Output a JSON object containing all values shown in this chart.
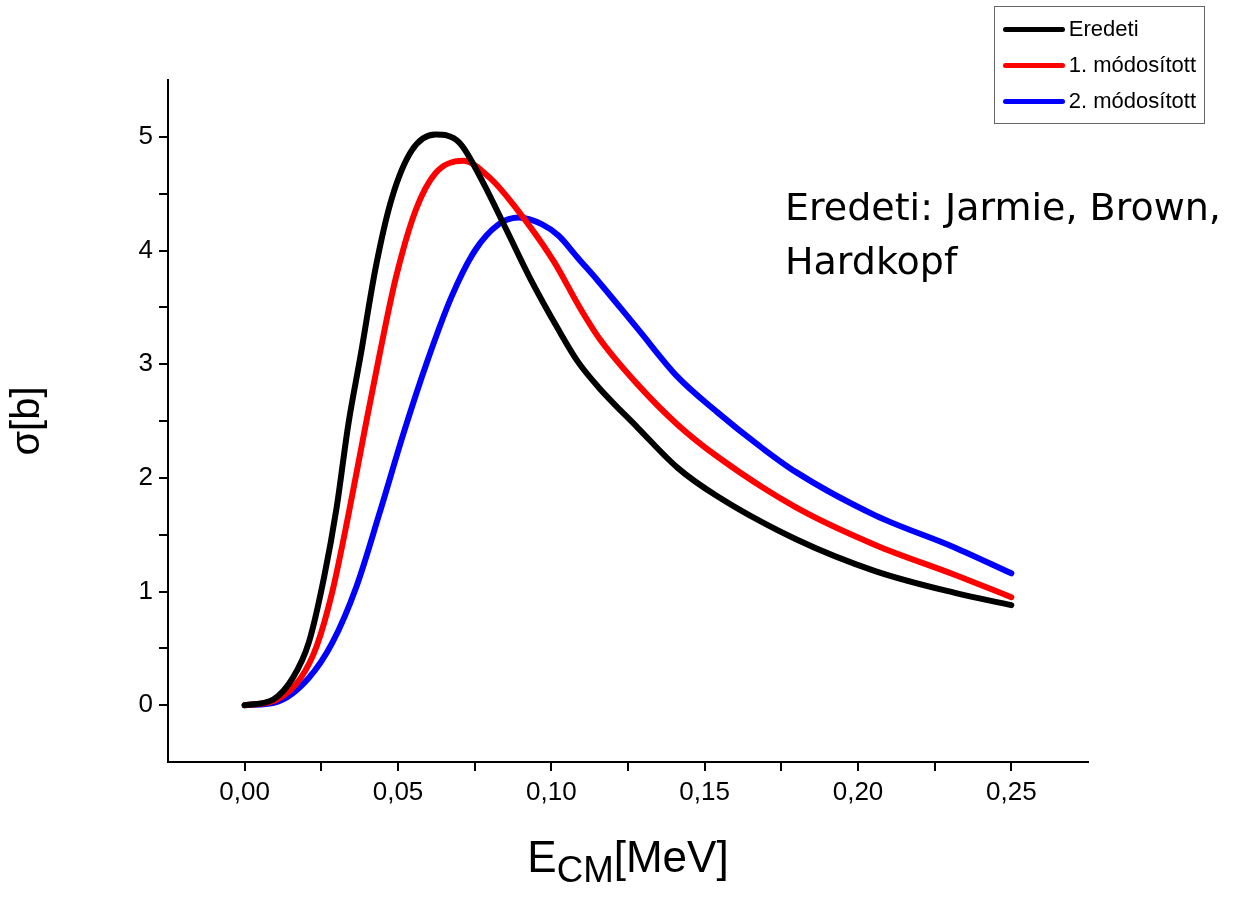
{
  "chart_data": {
    "type": "line",
    "xlabel": "E$_{CM}$[MeV]",
    "ylabel": "σ[b]",
    "xlim": [
      -0.025,
      0.275
    ],
    "xticks": [
      {
        "value": 0,
        "label": "0,00"
      },
      {
        "value": 0.025,
        "label": null
      },
      {
        "value": 0.05,
        "label": "0,05"
      },
      {
        "value": 0.075,
        "label": null
      },
      {
        "value": 0.1,
        "label": "0,10"
      },
      {
        "value": 0.125,
        "label": null
      },
      {
        "value": 0.15,
        "label": "0,15"
      },
      {
        "value": 0.175,
        "label": null
      },
      {
        "value": 0.2,
        "label": "0,20"
      },
      {
        "value": 0.225,
        "label": null
      },
      {
        "value": 0.25,
        "label": "0,25"
      }
    ],
    "ylim": [
      -0.5,
      5.5
    ],
    "yticks": [
      0,
      {
        "value": 0.5,
        "label": null
      },
      1,
      {
        "value": 1.5,
        "label": null
      },
      2,
      {
        "value": 2.5,
        "label": null
      },
      3,
      {
        "value": 3.5,
        "label": null
      },
      4,
      {
        "value": 4.5,
        "label": null
      },
      5
    ],
    "grid": false,
    "legend": "top right",
    "marker": "none",
    "line_style": "solid",
    "annotations": [
      "Eredeti: Jarmie, Brown, Hardkopf"
    ],
    "series": [
      {
        "name": "Eredeti",
        "color": "#000000",
        "x": [
          0,
          0.0093,
          0.0157,
          0.0209,
          0.026,
          0.03,
          0.0338,
          0.0377,
          0.0428,
          0.048,
          0.0545,
          0.0622,
          0.07,
          0.0777,
          0.0854,
          0.093,
          0.1024,
          0.1087,
          0.1153,
          0.1282,
          0.1411,
          0.154,
          0.1798,
          0.2056,
          0.2313,
          0.25
        ],
        "values": [
          0,
          0.05,
          0.24,
          0.55,
          1.14,
          1.74,
          2.47,
          3.06,
          3.86,
          4.46,
          4.88,
          5.02,
          4.95,
          4.6,
          4.18,
          3.76,
          3.3,
          3.02,
          2.8,
          2.44,
          2.09,
          1.84,
          1.46,
          1.18,
          0.99,
          0.88
        ]
      },
      {
        "name": "1. módosított",
        "color": "#ff0000",
        "x": [
          0,
          0.0106,
          0.0183,
          0.0235,
          0.0286,
          0.0338,
          0.039,
          0.0441,
          0.0493,
          0.0557,
          0.0622,
          0.0712,
          0.0803,
          0.088,
          0.1009,
          0.1088,
          0.1153,
          0.1282,
          0.1411,
          0.154,
          0.1798,
          0.2056,
          0.2313,
          0.25
        ],
        "values": [
          0,
          0.05,
          0.24,
          0.52,
          1.0,
          1.67,
          2.4,
          3.1,
          3.76,
          4.35,
          4.68,
          4.79,
          4.63,
          4.39,
          3.9,
          3.52,
          3.24,
          2.82,
          2.47,
          2.19,
          1.74,
          1.41,
          1.15,
          0.95
        ]
      },
      {
        "name": "2. módosított",
        "color": "#0000ff",
        "x": [
          0,
          0.0106,
          0.0209,
          0.0286,
          0.0364,
          0.0441,
          0.0519,
          0.0596,
          0.0674,
          0.0751,
          0.0828,
          0.0893,
          0.097,
          0.1024,
          0.1088,
          0.1153,
          0.1282,
          0.1411,
          0.154,
          0.1669,
          0.1798,
          0.2056,
          0.2313,
          0.25
        ],
        "values": [
          0,
          0.03,
          0.24,
          0.55,
          1.04,
          1.7,
          2.4,
          3.03,
          3.59,
          4.0,
          4.23,
          4.29,
          4.23,
          4.13,
          3.93,
          3.73,
          3.31,
          2.89,
          2.58,
          2.3,
          2.05,
          1.67,
          1.39,
          1.16
        ]
      }
    ]
  }
}
